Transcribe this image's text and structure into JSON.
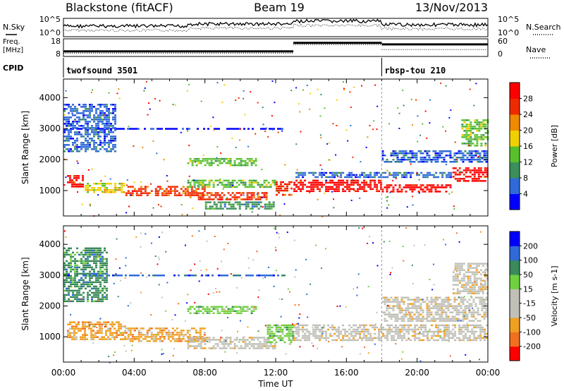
{
  "header": {
    "station": "Blackstone (fitACF)",
    "beam": "Beam 19",
    "date": "13/Nov/2013"
  },
  "status_panels": {
    "nsky_label": "N.Sky",
    "nsearch_label": "N.Search",
    "nsky_ticks": [
      "10^5",
      "10^0"
    ],
    "nsearch_ticks": [
      "10^5",
      "10^0"
    ],
    "freq_label_line1": "Freq.",
    "freq_label_line2": "[MHz]",
    "freq_ticks": [
      "18",
      "8"
    ],
    "nave_label": "Nave",
    "nave_ticks": [
      "60",
      "0"
    ],
    "cpid_label": "CPID",
    "cpid_segments": [
      {
        "name": "twofsound 3501",
        "start_hour": 0,
        "end_hour": 18
      },
      {
        "name": "rbsp-tou 210",
        "start_hour": 18,
        "end_hour": 24
      }
    ],
    "freq_mhz": [
      {
        "start_hour": 0,
        "end_hour": 13,
        "value": 10.5
      },
      {
        "start_hour": 13,
        "end_hour": 18,
        "value": 16.2
      },
      {
        "start_hour": 18,
        "end_hour": 24,
        "value": 15.2
      }
    ],
    "nave": [
      {
        "start_hour": 0,
        "end_hour": 13,
        "value": 8
      },
      {
        "start_hour": 13,
        "end_hour": 18,
        "value": 42
      },
      {
        "start_hour": 18,
        "end_hour": 24,
        "value": 22
      }
    ]
  },
  "chart_data": [
    {
      "type": "heatmap",
      "name": "power",
      "ylabel": "Slant Range [km]",
      "yticks": [
        1000,
        2000,
        3000,
        4000
      ],
      "ylim": [
        180,
        4600
      ],
      "xlim": [
        0,
        24
      ],
      "colorbar_label": "Power [dB]",
      "colorbar_ticks": [
        "28",
        "24",
        "20",
        "16",
        "12",
        "8",
        "4"
      ],
      "colors": [
        "#0000ff",
        "#2f6ad8",
        "#3c8f5a",
        "#58c02c",
        "#f0d000",
        "#f08a00",
        "#ee2b00",
        "#ff0000"
      ],
      "regions": [
        {
          "x0": 0.2,
          "x1": 1.2,
          "r0": 1100,
          "r1": 1500,
          "c": 7
        },
        {
          "x0": 1.2,
          "x1": 3.5,
          "r0": 900,
          "r1": 1250,
          "c": 4
        },
        {
          "x0": 3.5,
          "x1": 8,
          "r0": 800,
          "r1": 1150,
          "c": 6
        },
        {
          "x0": 7,
          "x1": 11.5,
          "r0": 700,
          "r1": 950,
          "c": 6
        },
        {
          "x0": 7,
          "x1": 12,
          "r0": 1050,
          "r1": 1350,
          "c": 3
        },
        {
          "x0": 7,
          "x1": 11,
          "r0": 1750,
          "r1": 2050,
          "c": 3
        },
        {
          "x0": 8,
          "x1": 12,
          "r0": 400,
          "r1": 650,
          "c": 2
        },
        {
          "x0": 12,
          "x1": 13,
          "r0": 850,
          "r1": 1300,
          "c": 6
        },
        {
          "x0": 13,
          "x1": 18,
          "r0": 950,
          "r1": 1350,
          "c": 7
        },
        {
          "x0": 18,
          "x1": 22,
          "r0": 950,
          "r1": 1200,
          "c": 7
        },
        {
          "x0": 22,
          "x1": 24,
          "r0": 1250,
          "r1": 1750,
          "c": 7
        },
        {
          "x0": 13,
          "x1": 22,
          "r0": 1400,
          "r1": 1600,
          "c": 1
        },
        {
          "x0": 18,
          "x1": 24,
          "r0": 1900,
          "r1": 2300,
          "c": 1
        },
        {
          "x0": 22.5,
          "x1": 24,
          "r0": 2400,
          "r1": 3300,
          "c": 3
        },
        {
          "x0": 0,
          "x1": 12.5,
          "r0": 2950,
          "r1": 3020,
          "c": 0
        },
        {
          "x0": 0,
          "x1": 3,
          "r0": 2200,
          "r1": 3800,
          "c": 1
        }
      ]
    },
    {
      "type": "heatmap",
      "name": "velocity",
      "ylabel": "Slant Range [km]",
      "yticks": [
        1000,
        2000,
        3000,
        4000
      ],
      "ylim": [
        180,
        4600
      ],
      "xlim": [
        0,
        24
      ],
      "xlabel": "Time UT",
      "xticks": [
        "00:00",
        "04:00",
        "08:00",
        "12:00",
        "16:00",
        "20:00",
        "00:00"
      ],
      "colorbar_label": "Velocity [m s-1]",
      "colorbar_ticks": [
        "200",
        "100",
        "50",
        "15",
        "-15",
        "-50",
        "-100",
        "-200"
      ],
      "colors": [
        "#ff0000",
        "#f07020",
        "#f0a020",
        "#c0c0b8",
        "#c0c0b8",
        "#70d040",
        "#3a8a5a",
        "#2f6ad8",
        "#0000ff"
      ],
      "regions": [
        {
          "x0": 0.2,
          "x1": 3.5,
          "r0": 900,
          "r1": 1500,
          "c": 2
        },
        {
          "x0": 3.5,
          "x1": 8,
          "r0": 800,
          "r1": 1300,
          "c": 2
        },
        {
          "x0": 7,
          "x1": 12,
          "r0": 600,
          "r1": 1000,
          "c": 3
        },
        {
          "x0": 7,
          "x1": 11,
          "r0": 1700,
          "r1": 2000,
          "c": 5
        },
        {
          "x0": 11.5,
          "x1": 13,
          "r0": 800,
          "r1": 1400,
          "c": 5
        },
        {
          "x0": 13,
          "x1": 24,
          "r0": 850,
          "r1": 1400,
          "c": 3
        },
        {
          "x0": 18,
          "x1": 24,
          "r0": 1500,
          "r1": 2300,
          "c": 3
        },
        {
          "x0": 22,
          "x1": 24,
          "r0": 2400,
          "r1": 3400,
          "c": 3
        },
        {
          "x0": 0,
          "x1": 2.5,
          "r0": 2100,
          "r1": 3900,
          "c": 6
        },
        {
          "x0": 0,
          "x1": 12.5,
          "r0": 2950,
          "r1": 3020,
          "c": 7
        }
      ]
    }
  ],
  "x_axis": {
    "label": "Time UT",
    "ticks": [
      "00:00",
      "04:00",
      "08:00",
      "12:00",
      "16:00",
      "20:00",
      "00:00"
    ]
  }
}
